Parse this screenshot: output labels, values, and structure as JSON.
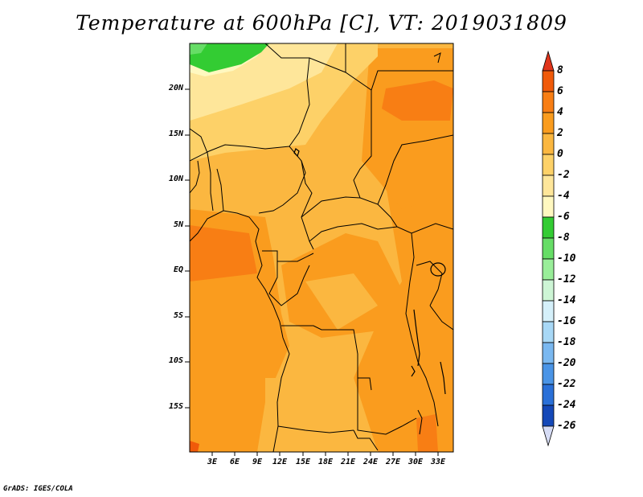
{
  "title": "Temperature at 600hPa [C], VT: 2019031809",
  "credit": "GrADS: IGES/COLA",
  "lat_labels": [
    "20N",
    "15N",
    "10N",
    "5N",
    "EQ",
    "5S",
    "10S",
    "15S"
  ],
  "lon_labels": [
    "3E",
    "6E",
    "9E",
    "12E",
    "15E",
    "18E",
    "21E",
    "24E",
    "27E",
    "30E",
    "33E"
  ],
  "colorbar": {
    "levels": [
      "8",
      "6",
      "4",
      "2",
      "0",
      "-2",
      "-4",
      "-6",
      "-8",
      "-10",
      "-12",
      "-14",
      "-16",
      "-18",
      "-20",
      "-22",
      "-24",
      "-26"
    ],
    "colors": [
      "#e0341a",
      "#f05a0a",
      "#f87e14",
      "#fa9c1e",
      "#fbb740",
      "#fdd168",
      "#fee69a",
      "#fff8c0",
      "#33cc33",
      "#66dd66",
      "#99ee99",
      "#cdf5d5",
      "#d5f0fa",
      "#a8d8f6",
      "#7ab8f0",
      "#4a94e6",
      "#2a70d8",
      "#1448b8",
      "#0a2a90",
      "#060b60",
      "#d6dcf5"
    ]
  },
  "map_colors": {
    "hot": "#f05a0a",
    "warm": "#f87e14",
    "mild": "#fa9c1e",
    "cool": "#fbb740",
    "cooler": "#fdd168",
    "pale": "#fee69a",
    "green": "#33cc33"
  },
  "map": {
    "lat_range": [
      -19.5,
      24.5
    ],
    "lon_range": [
      0,
      34.5
    ]
  }
}
